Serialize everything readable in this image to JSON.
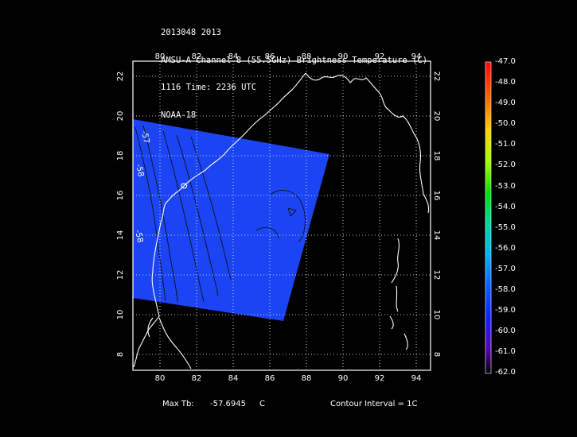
{
  "header": {
    "line1": "2013048 2013",
    "line2": "AMSU-A Channel 8 (55.5GHz) Brightness Temperature (C)",
    "line3": "1116 Time: 2236 UTC",
    "line4": "NOAA-18"
  },
  "map": {
    "lon_ticks": [
      "80",
      "82",
      "84",
      "86",
      "88",
      "90",
      "92",
      "94"
    ],
    "lat_ticks": [
      "22",
      "20",
      "18",
      "16",
      "14",
      "12",
      "10",
      "8"
    ],
    "contour_labels": [
      "-57",
      "-58",
      "-58"
    ],
    "swath_color": "#1b44f5",
    "coast_color": "#ffffff",
    "grid": "dotted"
  },
  "colorbar": {
    "labels": [
      "-47.0",
      "-48.0",
      "-49.0",
      "-50.0",
      "-51.0",
      "-52.0",
      "-53.0",
      "-54.0",
      "-55.0",
      "-56.0",
      "-57.0",
      "-58.0",
      "-59.0",
      "-60.0",
      "-61.0",
      "-62.0"
    ]
  },
  "footer": {
    "max_label": "Max Tb:",
    "max_value": "-57.6945",
    "max_unit": "C",
    "contour_interval": "Contour Interval = 1C"
  }
}
